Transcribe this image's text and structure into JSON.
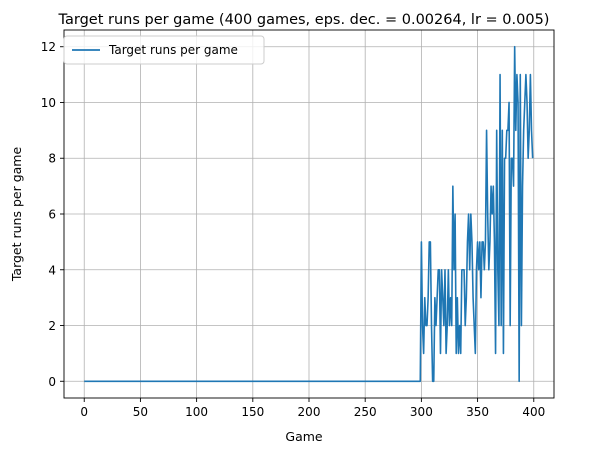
{
  "chart_data": {
    "type": "line",
    "title": "Target runs per game (400 games, eps. dec. = 0.00264, lr = 0.005)",
    "xlabel": "Game",
    "ylabel": "Target runs per game",
    "xlim": [
      -18,
      418
    ],
    "ylim": [
      -0.6,
      12.6
    ],
    "xticks": [
      0,
      50,
      100,
      150,
      200,
      250,
      300,
      350,
      400
    ],
    "yticks": [
      0,
      2,
      4,
      6,
      8,
      10,
      12
    ],
    "grid": true,
    "legend_position": "upper-left",
    "series": [
      {
        "name": "Target runs per game",
        "color": "#1f77b4",
        "x": [
          0,
          50,
          100,
          150,
          200,
          250,
          296,
          297,
          298,
          299,
          300,
          301,
          302,
          303,
          304,
          305,
          306,
          307,
          308,
          309,
          310,
          311,
          312,
          313,
          314,
          315,
          316,
          317,
          318,
          319,
          320,
          321,
          322,
          323,
          324,
          325,
          326,
          327,
          328,
          329,
          330,
          331,
          332,
          333,
          334,
          335,
          336,
          337,
          338,
          339,
          340,
          341,
          342,
          343,
          344,
          345,
          346,
          347,
          348,
          349,
          350,
          351,
          352,
          353,
          354,
          355,
          356,
          357,
          358,
          359,
          360,
          361,
          362,
          363,
          364,
          365,
          366,
          367,
          368,
          369,
          370,
          371,
          372,
          373,
          374,
          375,
          376,
          377,
          378,
          379,
          380,
          381,
          382,
          383,
          384,
          385,
          386,
          387,
          388,
          389,
          390,
          391,
          392,
          393,
          394,
          395,
          396,
          397,
          398,
          399
        ],
        "y": [
          0,
          0,
          0,
          0,
          0,
          0,
          0,
          0,
          0,
          0,
          5,
          2,
          1,
          3,
          2,
          2,
          3,
          5,
          5,
          2,
          0,
          0,
          3,
          2,
          3,
          4,
          4,
          1,
          4,
          3,
          2,
          4,
          1,
          2,
          4,
          2,
          3,
          2,
          7,
          4,
          6,
          1,
          3,
          1,
          2,
          1,
          4,
          4,
          4,
          2,
          3,
          5,
          6,
          4,
          6,
          5,
          3,
          2,
          1,
          4,
          5,
          4,
          5,
          3,
          5,
          5,
          4,
          5,
          9,
          6,
          4,
          5,
          7,
          6,
          7,
          5,
          1,
          9,
          4,
          2,
          11,
          2,
          9,
          1,
          8,
          8,
          9,
          9,
          10,
          2,
          8,
          8,
          7,
          12,
          9,
          11,
          10,
          0,
          11,
          2,
          7,
          9,
          10,
          11,
          10,
          8,
          9,
          11,
          9,
          8
        ]
      }
    ]
  }
}
